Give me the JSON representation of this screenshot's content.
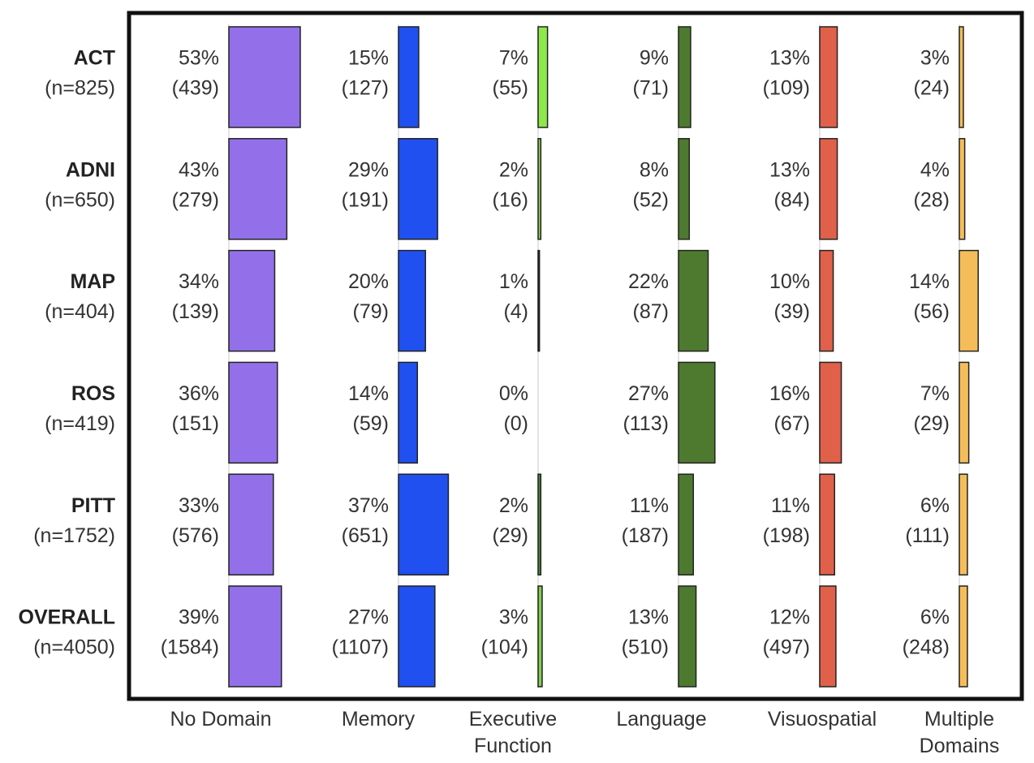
{
  "chart_data": {
    "type": "bar-grid",
    "categories": [
      "ACT",
      "ADNI",
      "MAP",
      "ROS",
      "PITT",
      "OVERALL"
    ],
    "category_sizes": [
      "(n=825)",
      "(n=650)",
      "(n=404)",
      "(n=419)",
      "(n=1752)",
      "(n=4050)"
    ],
    "series": [
      {
        "name": "No Domain",
        "color": "#9370ea",
        "values": [
          53,
          43,
          34,
          36,
          33,
          39
        ],
        "value_labels": [
          "53%",
          "43%",
          "34%",
          "36%",
          "33%",
          "39%"
        ],
        "counts": [
          439,
          279,
          139,
          151,
          576,
          1584
        ],
        "count_labels": [
          "(439)",
          "(279)",
          "(139)",
          "(151)",
          "(576)",
          "(1584)"
        ]
      },
      {
        "name": "Memory",
        "color": "#2050f0",
        "values": [
          15,
          29,
          20,
          14,
          37,
          27
        ],
        "value_labels": [
          "15%",
          "29%",
          "20%",
          "14%",
          "37%",
          "27%"
        ],
        "counts": [
          127,
          191,
          79,
          59,
          651,
          1107
        ],
        "count_labels": [
          "(127)",
          "(191)",
          "(79)",
          "(59)",
          "(651)",
          "(1107)"
        ]
      },
      {
        "name": "Executive Function",
        "colors": [
          "#8de84a",
          "#8fd44e",
          "#111111",
          "#888888",
          "#4e8a36",
          "#7fd04a"
        ],
        "values": [
          7,
          2,
          1,
          0,
          2,
          3
        ],
        "value_labels": [
          "7%",
          "2%",
          "1%",
          "0%",
          "2%",
          "3%"
        ],
        "counts": [
          55,
          16,
          4,
          0,
          29,
          104
        ],
        "count_labels": [
          "(55)",
          "(16)",
          "(4)",
          "(0)",
          "(29)",
          "(104)"
        ]
      },
      {
        "name": "Language",
        "color": "#4e7a30",
        "values": [
          9,
          8,
          22,
          27,
          11,
          13
        ],
        "value_labels": [
          "9%",
          "8%",
          "22%",
          "27%",
          "11%",
          "13%"
        ],
        "counts": [
          71,
          52,
          87,
          113,
          187,
          510
        ],
        "count_labels": [
          "(71)",
          "(52)",
          "(87)",
          "(113)",
          "(187)",
          "(510)"
        ]
      },
      {
        "name": "Visuospatial",
        "color": "#e0604a",
        "values": [
          13,
          13,
          10,
          16,
          11,
          12
        ],
        "value_labels": [
          "13%",
          "13%",
          "10%",
          "16%",
          "11%",
          "12%"
        ],
        "counts": [
          109,
          84,
          39,
          67,
          198,
          497
        ],
        "count_labels": [
          "(109)",
          "(84)",
          "(39)",
          "(67)",
          "(198)",
          "(497)"
        ]
      },
      {
        "name": "Multiple Domains",
        "color": "#f5bd5a",
        "values": [
          3,
          4,
          14,
          7,
          6,
          6
        ],
        "value_labels": [
          "3%",
          "4%",
          "14%",
          "7%",
          "6%",
          "6%"
        ],
        "counts": [
          24,
          28,
          56,
          29,
          111,
          248
        ],
        "count_labels": [
          "(24)",
          "(28)",
          "(56)",
          "(29)",
          "(111)",
          "(248)"
        ]
      }
    ]
  }
}
